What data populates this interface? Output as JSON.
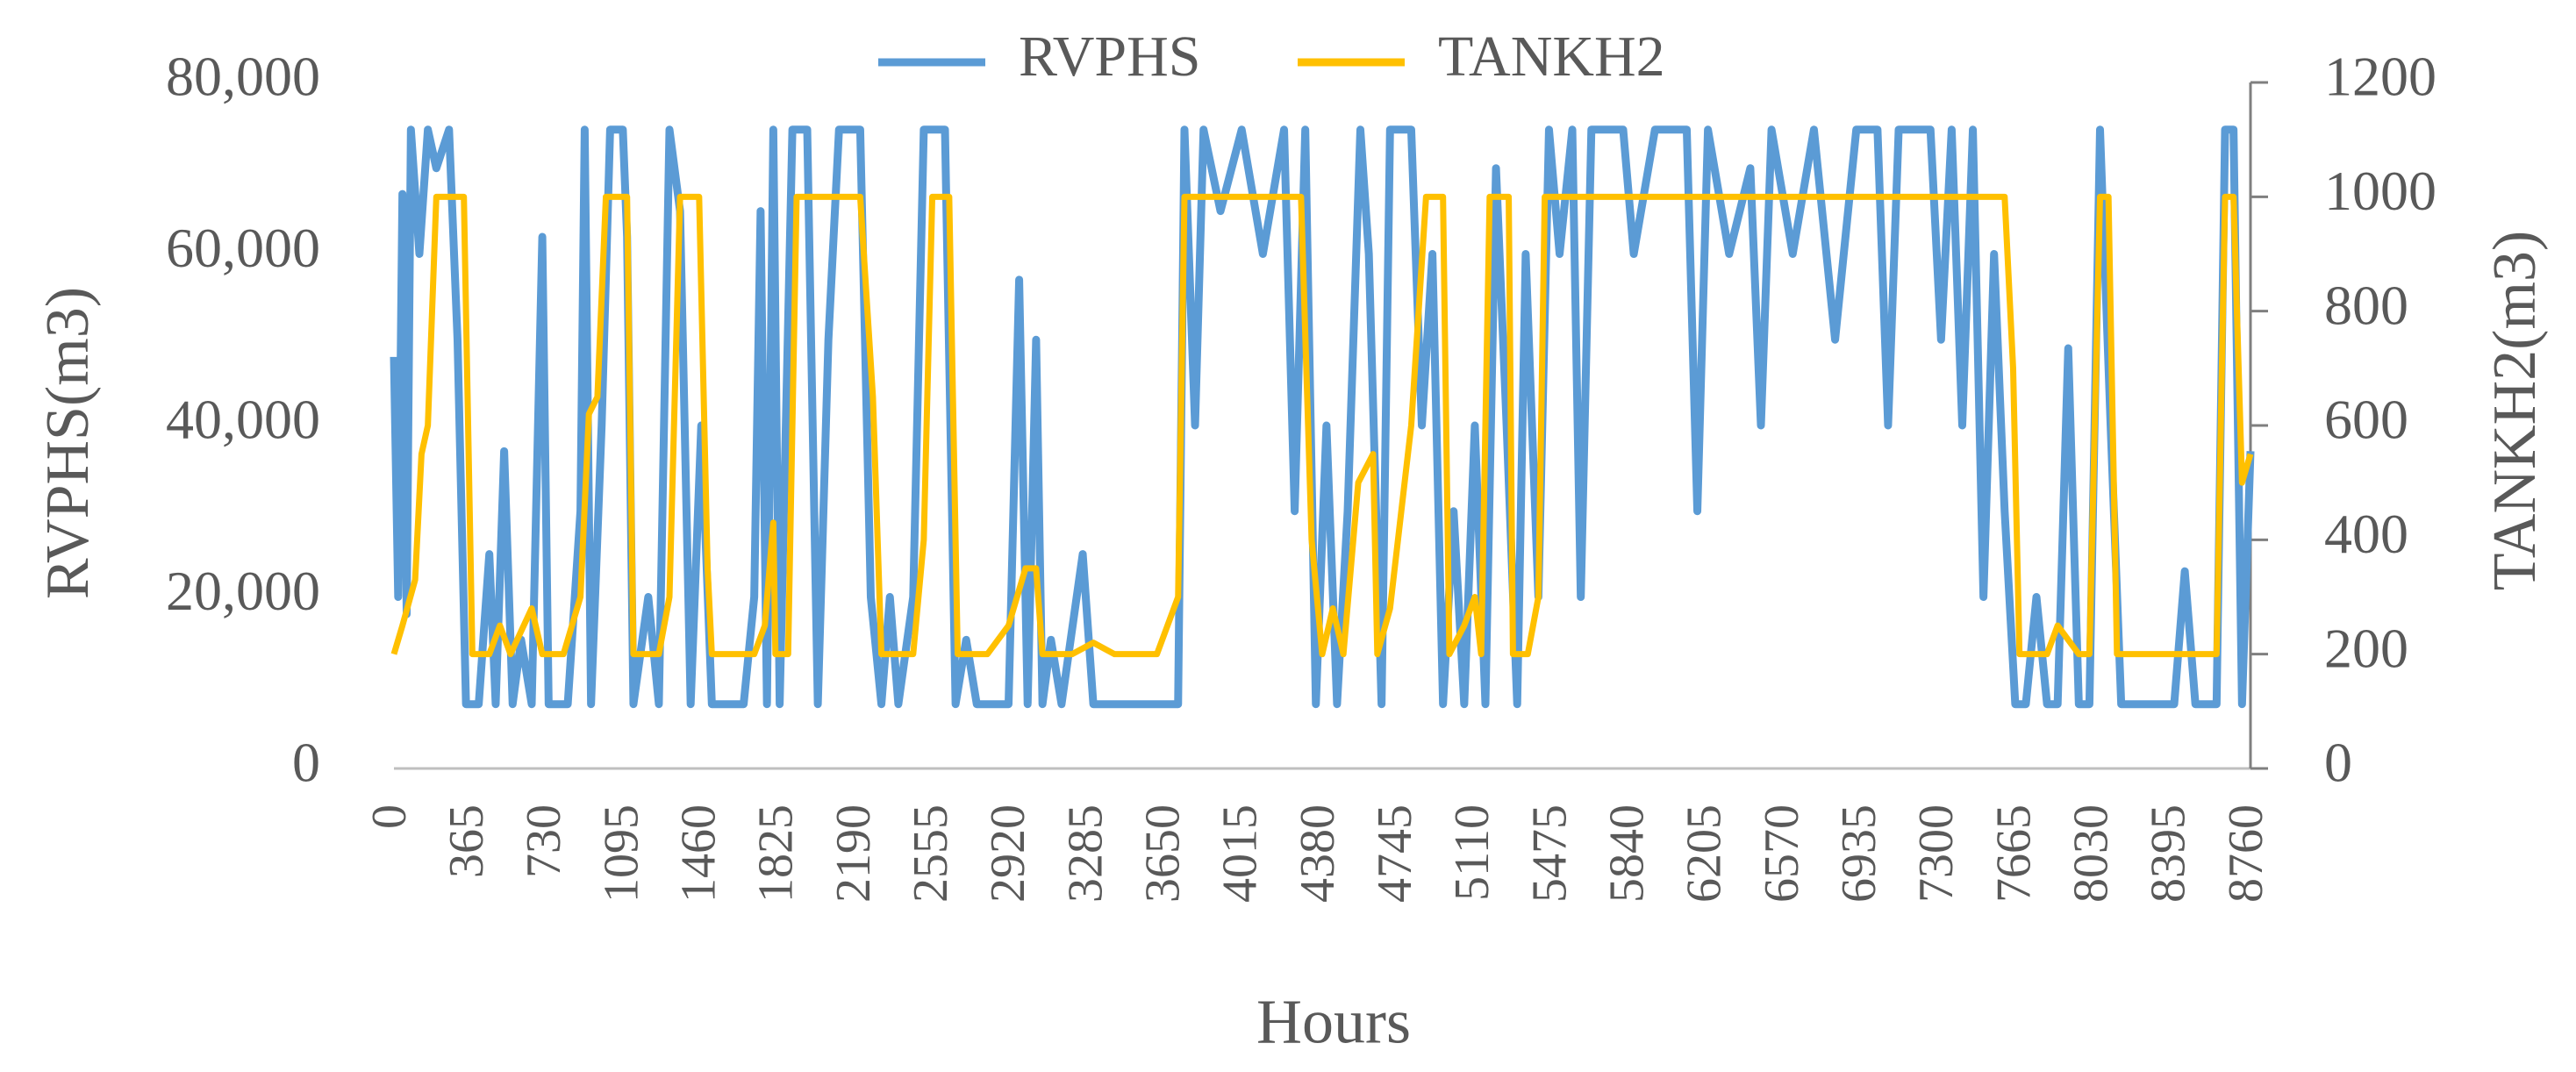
{
  "chart_data": {
    "type": "line",
    "xlabel": "Hours",
    "ylabel": "RVPHS(m3)",
    "y2label": "TANKH2(m3)",
    "legend": "top",
    "xlim": [
      0,
      8760
    ],
    "xticks": [
      0,
      365,
      730,
      1095,
      1460,
      1825,
      2190,
      2555,
      2920,
      3285,
      3650,
      4015,
      4380,
      4745,
      5110,
      5475,
      5840,
      6205,
      6570,
      6935,
      7300,
      7665,
      8030,
      8395,
      8760
    ],
    "ylim": [
      0,
      80000
    ],
    "yticks": [
      0,
      {
        "value": 20000,
        "label": "20,000"
      },
      {
        "value": 40000,
        "label": "40,000"
      },
      {
        "value": 60000,
        "label": "60,000"
      },
      {
        "value": 80000,
        "label": "80,000"
      }
    ],
    "y2lim": [
      0,
      1200
    ],
    "y2ticks": [
      0,
      200,
      400,
      600,
      800,
      1000,
      1200
    ],
    "series": [
      {
        "name": "RVPHS",
        "color": "#5b9bd5",
        "axis": "y",
        "x": [
          0,
          20,
          40,
          60,
          80,
          120,
          160,
          200,
          260,
          300,
          340,
          400,
          450,
          480,
          520,
          560,
          600,
          650,
          700,
          730,
          820,
          880,
          900,
          930,
          980,
          1020,
          1080,
          1100,
          1130,
          1200,
          1250,
          1300,
          1350,
          1400,
          1450,
          1500,
          1650,
          1700,
          1730,
          1760,
          1790,
          1820,
          1880,
          1950,
          2000,
          2050,
          2100,
          2200,
          2250,
          2300,
          2340,
          2380,
          2450,
          2500,
          2600,
          2650,
          2700,
          2750,
          2900,
          2950,
          2990,
          3030,
          3060,
          3100,
          3150,
          3250,
          3300,
          3700,
          3730,
          3780,
          3820,
          3900,
          4000,
          4100,
          4200,
          4250,
          4300,
          4350,
          4400,
          4450,
          4500,
          4560,
          4600,
          4660,
          4700,
          4800,
          4850,
          4900,
          4950,
          5000,
          5050,
          5100,
          5150,
          5200,
          5250,
          5300,
          5340,
          5400,
          5450,
          5500,
          5560,
          5600,
          5650,
          5800,
          5850,
          5950,
          6100,
          6150,
          6200,
          6300,
          6400,
          6450,
          6500,
          6600,
          6700,
          6800,
          6900,
          7000,
          7050,
          7100,
          7250,
          7300,
          7350,
          7400,
          7450,
          7500,
          7550,
          7600,
          7650,
          7700,
          7750,
          7800,
          7850,
          7900,
          7950,
          8000,
          8050,
          8100,
          8150,
          8300,
          8400,
          8450,
          8500,
          8600,
          8640,
          8680,
          8720,
          8760
        ],
        "values": [
          48000,
          20000,
          67000,
          18000,
          74500,
          60000,
          74500,
          70000,
          74500,
          50000,
          7500,
          7500,
          25000,
          7500,
          37000,
          7500,
          15000,
          7500,
          62000,
          7500,
          7500,
          30000,
          74500,
          7500,
          40000,
          74500,
          74500,
          62000,
          7500,
          20000,
          7500,
          74500,
          65000,
          7500,
          40000,
          7500,
          7500,
          20000,
          65000,
          7500,
          74500,
          7500,
          74500,
          74500,
          7500,
          50000,
          74500,
          74500,
          20000,
          7500,
          20000,
          7500,
          20000,
          74500,
          74500,
          7500,
          15000,
          7500,
          7500,
          57000,
          7500,
          50000,
          7500,
          15000,
          7500,
          25000,
          7500,
          7500,
          74500,
          40000,
          74500,
          65000,
          74500,
          60000,
          74500,
          30000,
          74500,
          7500,
          40000,
          7500,
          30000,
          74500,
          60000,
          7500,
          74500,
          74500,
          40000,
          60000,
          7500,
          30000,
          7500,
          40000,
          7500,
          70000,
          40000,
          7500,
          60000,
          20000,
          74500,
          60000,
          74500,
          20000,
          74500,
          74500,
          60000,
          74500,
          74500,
          30000,
          74500,
          60000,
          70000,
          40000,
          74500,
          60000,
          74500,
          50000,
          74500,
          74500,
          40000,
          74500,
          74500,
          50000,
          74500,
          40000,
          74500,
          20000,
          60000,
          30000,
          7500,
          7500,
          20000,
          7500,
          7500,
          49000,
          7500,
          7500,
          74500,
          40000,
          7500,
          7500,
          7500,
          23000,
          7500,
          7500,
          74500,
          74500,
          7500,
          37000
        ]
      },
      {
        "name": "TANKH2",
        "color": "#ffc000",
        "axis": "y2",
        "x": [
          0,
          40,
          100,
          130,
          160,
          200,
          330,
          370,
          450,
          500,
          550,
          650,
          700,
          800,
          880,
          920,
          960,
          1000,
          1100,
          1130,
          1250,
          1300,
          1350,
          1440,
          1480,
          1500,
          1700,
          1750,
          1790,
          1800,
          1860,
          1900,
          2200,
          2260,
          2300,
          2450,
          2500,
          2540,
          2620,
          2660,
          2800,
          2900,
          2980,
          3030,
          3060,
          3200,
          3300,
          3400,
          3600,
          3700,
          3730,
          4280,
          4330,
          4380,
          4430,
          4480,
          4550,
          4620,
          4640,
          4700,
          4800,
          4870,
          4950,
          4980,
          5050,
          5100,
          5130,
          5170,
          5260,
          5280,
          5350,
          5400,
          5430,
          7600,
          7640,
          7670,
          7800,
          7850,
          7950,
          8000,
          8050,
          8090,
          8130,
          8600,
          8640,
          8680,
          8720,
          8760
        ],
        "values": [
          200,
          250,
          330,
          550,
          600,
          1000,
          1000,
          200,
          200,
          250,
          200,
          280,
          200,
          200,
          300,
          620,
          650,
          1000,
          1000,
          200,
          200,
          300,
          1000,
          1000,
          350,
          200,
          200,
          250,
          430,
          200,
          200,
          1000,
          1000,
          650,
          200,
          200,
          400,
          1000,
          1000,
          200,
          200,
          250,
          350,
          350,
          200,
          200,
          220,
          200,
          200,
          300,
          1000,
          1000,
          400,
          200,
          280,
          200,
          500,
          550,
          200,
          280,
          600,
          1000,
          1000,
          200,
          250,
          300,
          200,
          1000,
          1000,
          200,
          200,
          300,
          1000,
          1000,
          700,
          200,
          200,
          250,
          200,
          200,
          1000,
          1000,
          200,
          200,
          1000,
          1000,
          500,
          550
        ]
      }
    ]
  }
}
